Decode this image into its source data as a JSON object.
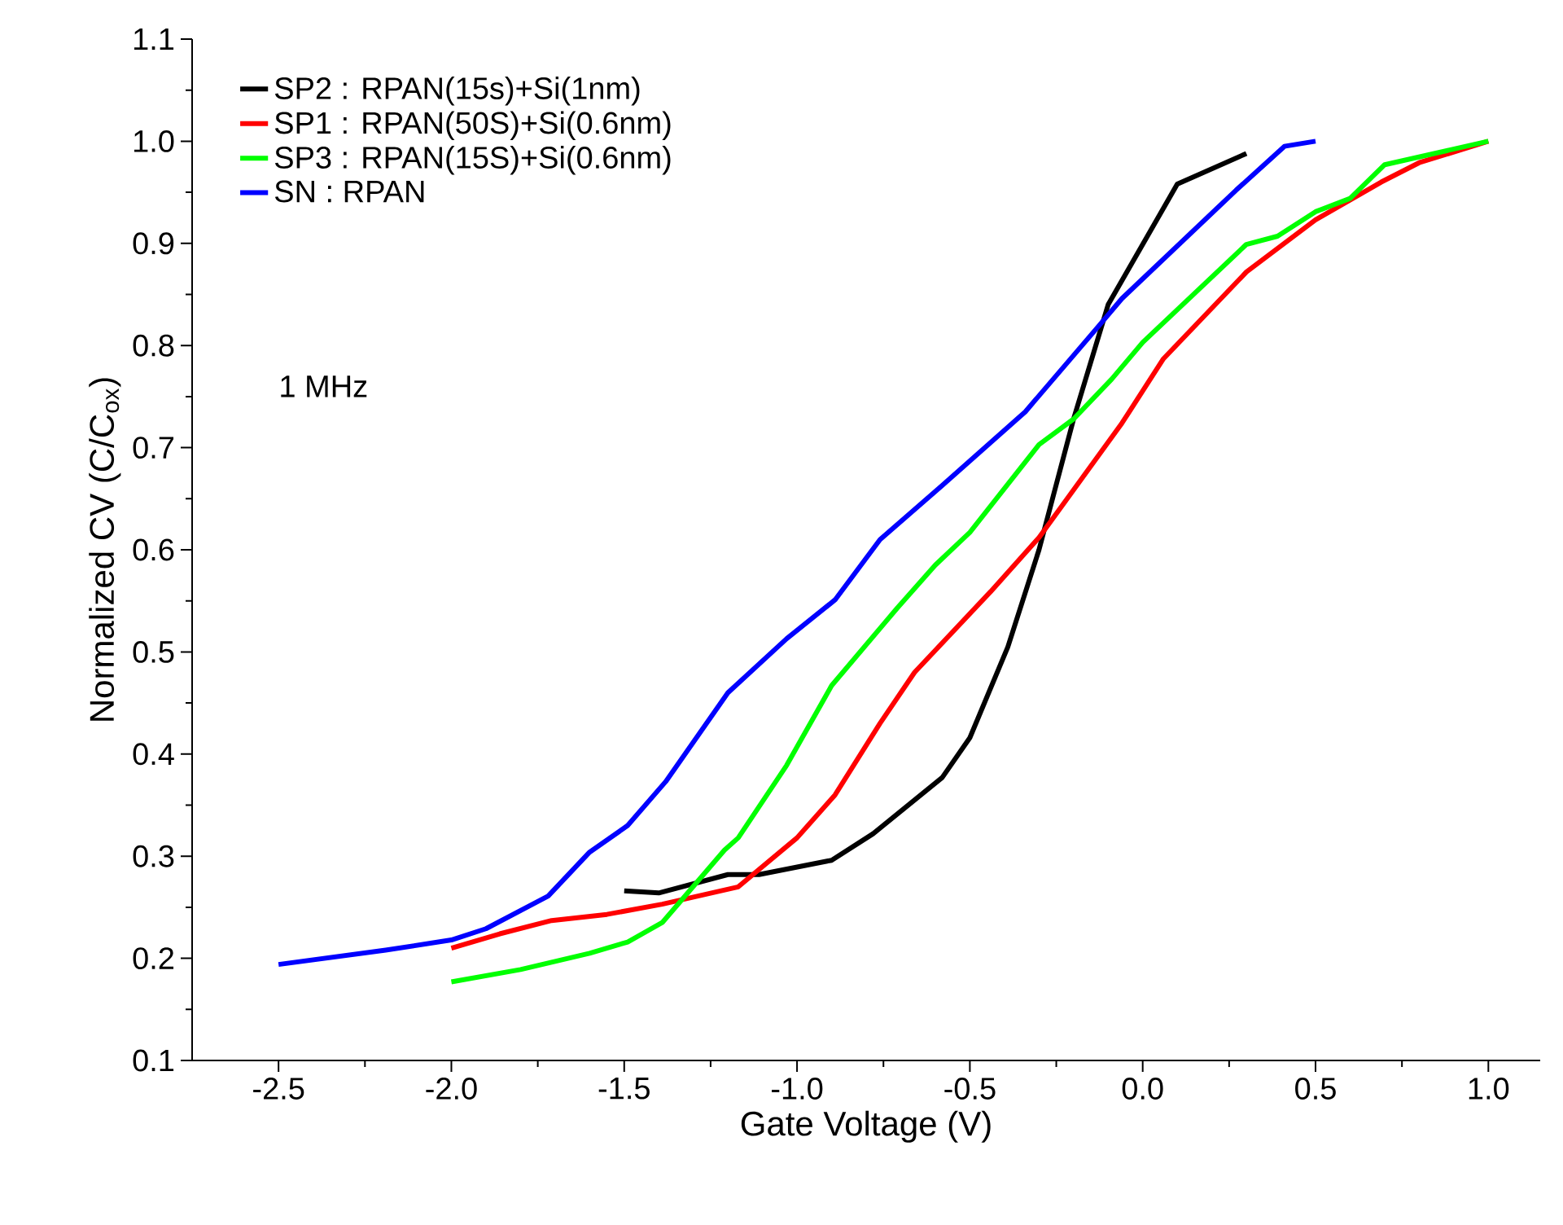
{
  "chart_data": {
    "type": "line",
    "xlabel": "Gate Voltage (V)",
    "ylabel": "Normalized CV (C/C$_{ox}$)",
    "annotations": [
      "1 MHz"
    ],
    "xlim": [
      -2.75,
      1.15
    ],
    "ylim": [
      0.1,
      1.1
    ],
    "xticks": [
      {
        "value": -2.5,
        "label": "-2.5"
      },
      {
        "value": -2.0,
        "label": "-2.0"
      },
      {
        "value": -1.5,
        "label": "-1.5"
      },
      {
        "value": -1.0,
        "label": "-1.0"
      },
      {
        "value": -0.5,
        "label": "-0.5"
      },
      {
        "value": 0.0,
        "label": "0.0"
      },
      {
        "value": 0.5,
        "label": "0.5"
      },
      {
        "value": 1.0,
        "label": "1.0"
      }
    ],
    "yticks": [
      {
        "value": 0.1,
        "label": "0.1"
      },
      {
        "value": 0.2,
        "label": "0.2"
      },
      {
        "value": 0.3,
        "label": "0.3"
      },
      {
        "value": 0.4,
        "label": "0.4"
      },
      {
        "value": 0.5,
        "label": "0.5"
      },
      {
        "value": 0.6,
        "label": "0.6"
      },
      {
        "value": 0.7,
        "label": "0.7"
      },
      {
        "value": 0.8,
        "label": "0.8"
      },
      {
        "value": 0.9,
        "label": "0.9"
      },
      {
        "value": 1.0,
        "label": "1.0"
      },
      {
        "value": 1.1,
        "label": "1.1"
      }
    ],
    "grid": false,
    "legend": "top left",
    "marker": "none",
    "line_style": "solid",
    "series": [
      {
        "name": "SP2 : RPAN(15s)+Si(1nm)",
        "color": "#000000",
        "x": [
          -1.5,
          -1.4,
          -1.2,
          -1.11,
          -0.9,
          -0.78,
          -0.58,
          -0.5,
          -0.39,
          -0.3,
          -0.2,
          -0.1,
          0.1,
          0.3
        ],
        "values": [
          0.266,
          0.264,
          0.282,
          0.282,
          0.296,
          0.322,
          0.377,
          0.416,
          0.505,
          0.6,
          0.728,
          0.84,
          0.958,
          0.988
        ]
      },
      {
        "name": "SP1 : RPAN(50S)+Si(0.6nm)",
        "color": "#ff0000",
        "x": [
          -2.0,
          -1.86,
          -1.71,
          -1.55,
          -1.39,
          -1.17,
          -1.0,
          -0.89,
          -0.76,
          -0.66,
          -0.44,
          -0.3,
          -0.06,
          0.06,
          0.3,
          0.5,
          0.69,
          0.8,
          1.0
        ],
        "values": [
          0.21,
          0.224,
          0.237,
          0.243,
          0.253,
          0.27,
          0.318,
          0.36,
          0.43,
          0.48,
          0.559,
          0.612,
          0.724,
          0.787,
          0.872,
          0.923,
          0.96,
          0.979,
          1.0
        ]
      },
      {
        "name": "SP3 : RPAN(15S)+Si(0.6nm)",
        "color": "#00ff00",
        "x": [
          -2.0,
          -1.8,
          -1.6,
          -1.49,
          -1.39,
          -1.21,
          -1.17,
          -1.03,
          -0.9,
          -0.71,
          -0.6,
          -0.5,
          -0.3,
          -0.2,
          -0.09,
          0.0,
          0.3,
          0.39,
          0.5,
          0.6,
          0.7,
          1.0
        ],
        "values": [
          0.177,
          0.189,
          0.205,
          0.216,
          0.235,
          0.306,
          0.318,
          0.389,
          0.467,
          0.543,
          0.585,
          0.617,
          0.703,
          0.728,
          0.767,
          0.803,
          0.899,
          0.907,
          0.931,
          0.944,
          0.977,
          1.0
        ]
      },
      {
        "name": "SN : RPAN",
        "color": "#0000ff",
        "x": [
          -2.5,
          -2.19,
          -2.0,
          -1.9,
          -1.72,
          -1.6,
          -1.49,
          -1.38,
          -1.2,
          -1.03,
          -0.89,
          -0.76,
          -0.58,
          -0.34,
          -0.13,
          -0.06,
          0.27,
          0.41,
          0.5
        ],
        "values": [
          0.194,
          0.208,
          0.218,
          0.229,
          0.261,
          0.304,
          0.33,
          0.373,
          0.46,
          0.513,
          0.551,
          0.61,
          0.663,
          0.735,
          0.818,
          0.846,
          0.952,
          0.995,
          1.0
        ]
      }
    ]
  }
}
